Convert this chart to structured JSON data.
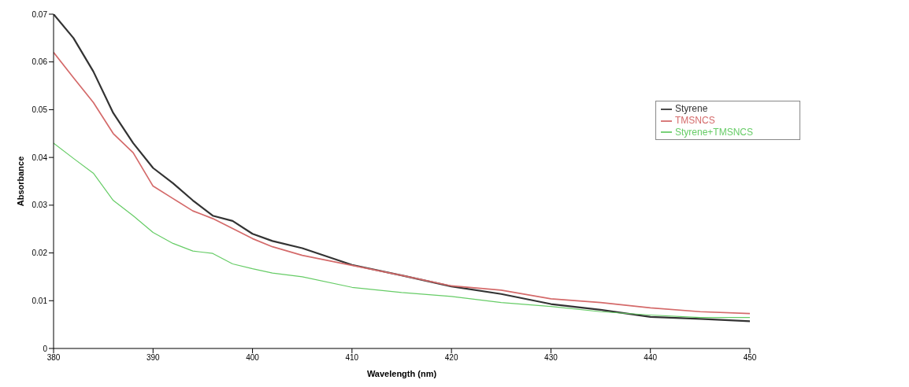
{
  "chart_data": {
    "type": "line",
    "xlabel": "Wavelength (nm)",
    "ylabel": "Absorbance",
    "x": [
      380,
      382,
      384,
      386,
      388,
      390,
      392,
      394,
      396,
      398,
      400,
      402,
      405,
      410,
      415,
      420,
      425,
      430,
      435,
      440,
      445,
      450
    ],
    "series": [
      {
        "name": "Styrene",
        "color": "#333333",
        "values": [
          0.07,
          0.065,
          0.058,
          0.0493,
          0.043,
          0.0378,
          0.0346,
          0.031,
          0.0278,
          0.0267,
          0.024,
          0.0225,
          0.021,
          0.0175,
          0.0153,
          0.013,
          0.0114,
          0.0093,
          0.0081,
          0.0066,
          0.0062,
          0.0057
        ]
      },
      {
        "name": "TMSNCS",
        "color": "#d46a6a",
        "values": [
          0.062,
          0.0567,
          0.0515,
          0.045,
          0.041,
          0.034,
          0.0314,
          0.0288,
          0.0272,
          0.0251,
          0.023,
          0.0213,
          0.0195,
          0.0174,
          0.0153,
          0.0131,
          0.0122,
          0.0104,
          0.0096,
          0.0085,
          0.0077,
          0.0073
        ]
      },
      {
        "name": "Styrene+TMSNCS",
        "color": "#66cc66",
        "values": [
          0.043,
          0.0398,
          0.0367,
          0.031,
          0.0278,
          0.0243,
          0.022,
          0.0204,
          0.0199,
          0.0177,
          0.0167,
          0.0158,
          0.015,
          0.0128,
          0.0117,
          0.0109,
          0.0096,
          0.0088,
          0.0077,
          0.007,
          0.0065,
          0.0065
        ]
      }
    ],
    "xlim": [
      380,
      450
    ],
    "xticks": [
      380,
      390,
      400,
      410,
      420,
      430,
      440,
      450
    ],
    "ylim": [
      0,
      0.07
    ],
    "yticks": [
      0,
      0.01,
      0.02,
      0.03,
      0.04,
      0.05,
      0.06,
      0.07
    ],
    "grid": false,
    "legend": "top right",
    "marker": "none",
    "line_style": "solid"
  }
}
